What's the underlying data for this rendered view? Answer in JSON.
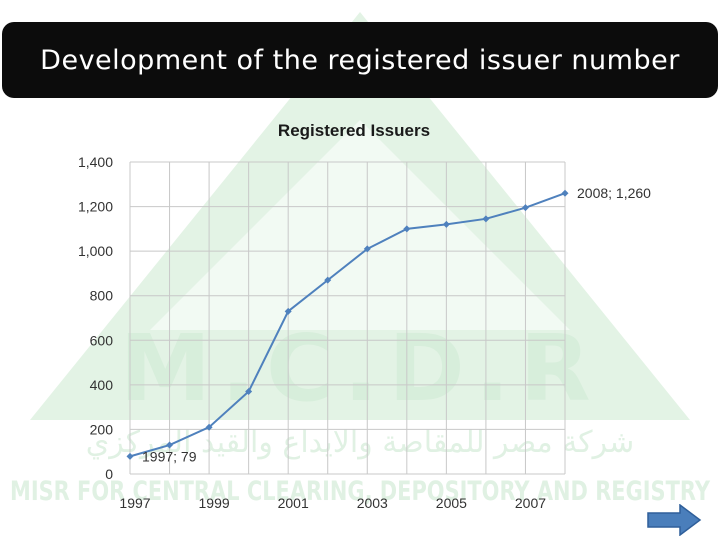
{
  "slide": {
    "title": "Development of the registered issuer number",
    "watermark_text": "M.C.D.R",
    "watermark_arabic": "شركة مصر للمقاصة والايداع والقيد المركزي",
    "watermark_english": "MISR FOR CENTRAL CLEARING, DEPOSITORY AND REGISTRY"
  },
  "colors": {
    "title_bg": "#0c0c0c",
    "series_line": "#4f81bd",
    "grid": "#c8c8c8",
    "watermark": "#dff1e1",
    "next_button": "#4a7ebb"
  },
  "icons": {
    "next": "right-arrow-icon"
  },
  "chart_data": {
    "type": "line",
    "title": "Registered Issuers",
    "x": [
      1997,
      1998,
      1999,
      2000,
      2001,
      2002,
      2003,
      2004,
      2005,
      2006,
      2007,
      2008
    ],
    "series": [
      {
        "values": [
          79,
          130,
          210,
          370,
          730,
          870,
          1010,
          1100,
          1120,
          1145,
          1195,
          1260
        ]
      }
    ],
    "xticks": [
      "1997",
      "1999",
      "2001",
      "2003",
      "2005",
      "2007"
    ],
    "yticks": [
      "0",
      "200",
      "400",
      "600",
      "800",
      "1,000",
      "1,200",
      "1,400"
    ],
    "ylim": [
      0,
      1400
    ],
    "xlim": [
      1997,
      2008
    ],
    "grid": true,
    "annotations": [
      {
        "x": 1997,
        "y": 79,
        "text": "1997; 79"
      },
      {
        "x": 2008,
        "y": 1260,
        "text": "2008; 1,260"
      }
    ]
  }
}
